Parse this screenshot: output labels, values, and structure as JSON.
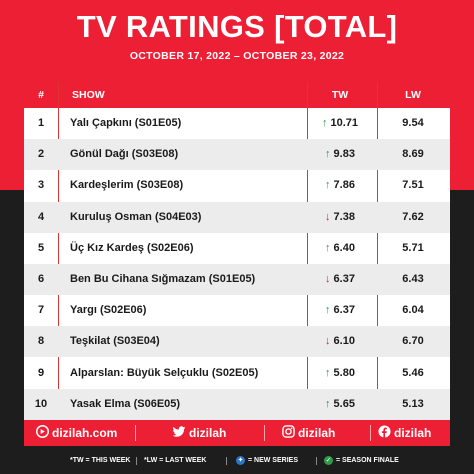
{
  "header": {
    "title": "TV RATINGS [TOTAL]",
    "date_range": "OCTOBER 17, 2022 – OCTOBER 23, 2022"
  },
  "table": {
    "columns": {
      "num": "#",
      "show": "SHOW",
      "tw": "TW",
      "lw": "LW"
    },
    "rows": [
      {
        "num": "1",
        "show": "Yalı Çapkını (S01E05)",
        "trend": "up",
        "tw": "10.71",
        "lw": "9.54"
      },
      {
        "num": "2",
        "show": "Gönül Dağı (S03E08)",
        "trend": "up",
        "tw": "9.83",
        "lw": "8.69"
      },
      {
        "num": "3",
        "show": "Kardeşlerim (S03E08)",
        "trend": "up",
        "tw": "7.86",
        "lw": "7.51"
      },
      {
        "num": "4",
        "show": "Kuruluş Osman (S04E03)",
        "trend": "down",
        "tw": "7.38",
        "lw": "7.62"
      },
      {
        "num": "5",
        "show": "Üç Kız Kardeş (S02E06)",
        "trend": "up",
        "tw": "6.40",
        "lw": "5.71"
      },
      {
        "num": "6",
        "show": "Ben Bu Cihana Sığmazam (S01E05)",
        "trend": "down",
        "tw": "6.37",
        "lw": "6.43"
      },
      {
        "num": "7",
        "show": "Yargı (S02E06)",
        "trend": "up",
        "tw": "6.37",
        "lw": "6.04"
      },
      {
        "num": "8",
        "show": "Teşkilat (S03E04)",
        "trend": "down",
        "tw": "6.10",
        "lw": "6.70"
      },
      {
        "num": "9",
        "show": "Alparslan: Büyük Selçuklu (S02E05)",
        "trend": "up",
        "tw": "5.80",
        "lw": "5.46"
      },
      {
        "num": "10",
        "show": "Yasak Elma (S06E05)",
        "trend": "up",
        "tw": "5.65",
        "lw": "5.13"
      }
    ]
  },
  "social": {
    "website": "dizilah.com",
    "twitter": "dizilah",
    "instagram": "dizilah",
    "facebook": "dizilah"
  },
  "legend": {
    "tw": "*TW = THIS WEEK",
    "lw": "*LW = LAST WEEK",
    "new_series": "= NEW SERIES",
    "season_finale": "= SEASON FINALE"
  },
  "colors": {
    "brand_red": "#ec1f35",
    "dark_bg": "#1d1d1d",
    "up_green": "#2e9a4a",
    "down_red": "#d41f30"
  }
}
